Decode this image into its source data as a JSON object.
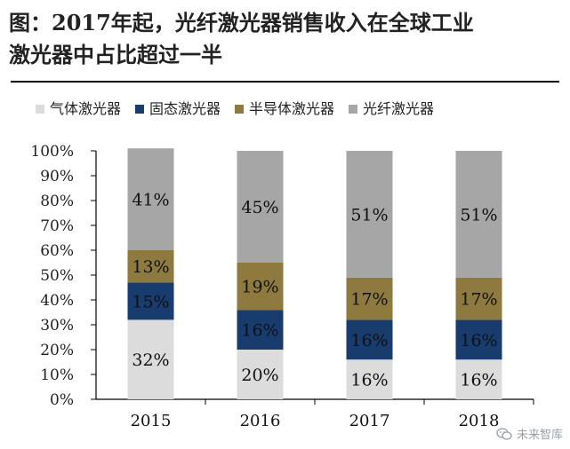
{
  "header": {
    "title_line1": "图：2017年起，光纤激光器销售收入在全球工业",
    "title_line2": "激光器中占比超过一半"
  },
  "watermark": {
    "text": "未来智库",
    "icon": "wechat-icon"
  },
  "chart_data": {
    "type": "bar",
    "stacked": true,
    "categories": [
      "2015",
      "2016",
      "2017",
      "2018"
    ],
    "series": [
      {
        "name": "气体激光器",
        "color": "#dcdcdc",
        "values": [
          32,
          20,
          16,
          16
        ],
        "labels": [
          "32%",
          "20%",
          "16%",
          "16%"
        ]
      },
      {
        "name": "固态激光器",
        "color": "#183c6e",
        "values": [
          15,
          16,
          16,
          16
        ],
        "labels": [
          "15%",
          "16%",
          "16%",
          "16%"
        ]
      },
      {
        "name": "半导体激光器",
        "color": "#8e7a3f",
        "values": [
          13,
          19,
          17,
          17
        ],
        "labels": [
          "13%",
          "19%",
          "17%",
          "17%"
        ]
      },
      {
        "name": "光纤激光器",
        "color": "#a6a6a6",
        "values": [
          41,
          45,
          51,
          51
        ],
        "labels": [
          "41%",
          "45%",
          "51%",
          "51%"
        ]
      }
    ],
    "yticks": [
      "0%",
      "10%",
      "20%",
      "30%",
      "40%",
      "50%",
      "60%",
      "70%",
      "80%",
      "90%",
      "100%"
    ],
    "ylim": [
      0,
      100
    ],
    "legend_position": "top",
    "grid": false
  }
}
